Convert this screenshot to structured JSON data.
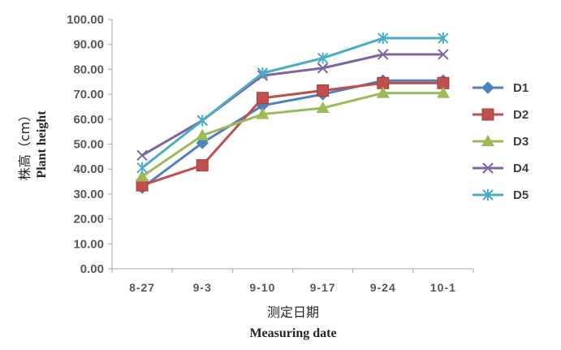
{
  "chart_data": {
    "type": "line",
    "categories": [
      "8-27",
      "9-3",
      "9-10",
      "9-17",
      "9-24",
      "10-1"
    ],
    "ylabel_cn": "株高（cm）",
    "ylabel_en": "Plant height",
    "xlabel_cn": "测定日期",
    "xlabel_en": "Measuring date",
    "ylim": [
      0,
      100
    ],
    "ytick_step": 10,
    "ytick_labels": [
      "0.00",
      "10.00",
      "20.00",
      "30.00",
      "40.00",
      "50.00",
      "60.00",
      "70.00",
      "80.00",
      "90.00",
      "100.00"
    ],
    "grid": false,
    "legend_position": "right",
    "series": [
      {
        "name": "D1",
        "color": "#4F81BD",
        "marker": "diamond",
        "values": [
          32.5,
          50.5,
          65.5,
          70.0,
          75.5,
          75.5
        ]
      },
      {
        "name": "D2",
        "color": "#C0504D",
        "marker": "square",
        "values": [
          33.5,
          41.5,
          68.5,
          71.5,
          74.5,
          74.5
        ]
      },
      {
        "name": "D3",
        "color": "#9BBB59",
        "marker": "triangle",
        "values": [
          37.0,
          53.5,
          62.0,
          64.5,
          70.5,
          70.5
        ]
      },
      {
        "name": "D4",
        "color": "#8064A2",
        "marker": "x",
        "values": [
          45.5,
          59.5,
          77.5,
          80.5,
          86.0,
          86.0
        ]
      },
      {
        "name": "D5",
        "color": "#4BACC6",
        "marker": "asterisk",
        "values": [
          40.5,
          59.5,
          78.5,
          84.5,
          92.5,
          92.5
        ]
      }
    ]
  }
}
